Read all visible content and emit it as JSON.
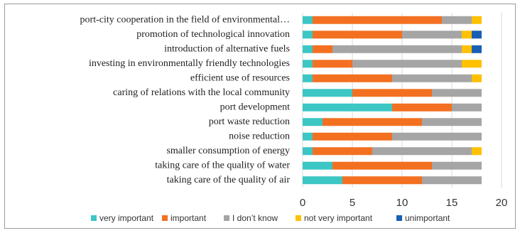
{
  "chart_data": {
    "type": "stacked-bar-horizontal",
    "categories": [
      "port-city cooperation in the field of environmental…",
      "promotion of technological innovation",
      "introduction of alternative fuels",
      "investing in environmentally friendly technologies",
      "efficient use of resources",
      "caring of relations with the local community",
      "port development",
      "port waste reduction",
      "noise reduction",
      "smaller consumption of energy",
      "taking care of the quality of water",
      "taking care of the quality of air"
    ],
    "series": [
      {
        "name": "very important",
        "color": "#3cc6c4",
        "values": [
          1,
          1,
          1,
          1,
          1,
          5,
          9,
          2,
          1,
          1,
          3,
          4
        ]
      },
      {
        "name": "important",
        "color": "#f37021",
        "values": [
          13,
          9,
          2,
          4,
          8,
          8,
          6,
          10,
          8,
          6,
          10,
          8
        ]
      },
      {
        "name": "I don’t know",
        "color": "#a5a5a5",
        "values": [
          3,
          6,
          13,
          11,
          8,
          5,
          3,
          6,
          9,
          10,
          5,
          6
        ]
      },
      {
        "name": "not very important",
        "color": "#ffc000",
        "values": [
          1,
          1,
          1,
          2,
          1,
          0,
          0,
          0,
          0,
          1,
          0,
          0
        ]
      },
      {
        "name": "unimportant",
        "color": "#1a5fb4",
        "values": [
          0,
          1,
          1,
          0,
          0,
          0,
          0,
          0,
          0,
          0,
          0,
          0
        ]
      }
    ],
    "xlim": [
      0,
      20
    ],
    "xticks": [
      0,
      5,
      10,
      15,
      20
    ],
    "grid": true,
    "legend": "bottom"
  }
}
